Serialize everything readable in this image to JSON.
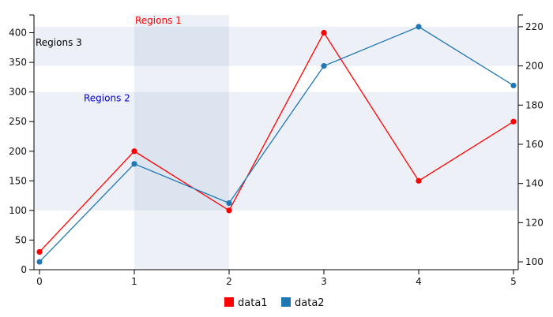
{
  "chart_data": {
    "type": "line",
    "x": [
      0,
      1,
      2,
      3,
      4,
      5
    ],
    "series": [
      {
        "name": "data1",
        "axis": "y",
        "color": "#ff0000",
        "values": [
          30,
          200,
          100,
          400,
          150,
          250
        ]
      },
      {
        "name": "data2",
        "axis": "y2",
        "color": "#1f77b4",
        "values": [
          100,
          150,
          130,
          200,
          220,
          190
        ]
      }
    ],
    "ylim": [
      0,
      430
    ],
    "y2lim": [
      96,
      226
    ],
    "xlim": [
      0,
      5
    ],
    "xticks": [
      "0",
      "1",
      "2",
      "3",
      "4",
      "5"
    ],
    "yticks": [
      "0",
      "50",
      "100",
      "150",
      "200",
      "250",
      "300",
      "350",
      "400"
    ],
    "y2ticks": [
      "100",
      "120",
      "140",
      "160",
      "180",
      "200",
      "220"
    ],
    "regions": [
      {
        "label": "Regions 1",
        "axis": "x",
        "start": 1,
        "end": 2,
        "label_color": "#ff0000"
      },
      {
        "label": "Regions 2",
        "axis": "y",
        "start": 100,
        "end": 300,
        "label_color": "#0000cc"
      },
      {
        "label": "Regions 3",
        "axis": "y2",
        "start": 200,
        "end": 220,
        "label_color": "#000000"
      }
    ],
    "legend_position": "bottom",
    "grid": false,
    "title": "",
    "xlabel": "",
    "ylabel": ""
  }
}
